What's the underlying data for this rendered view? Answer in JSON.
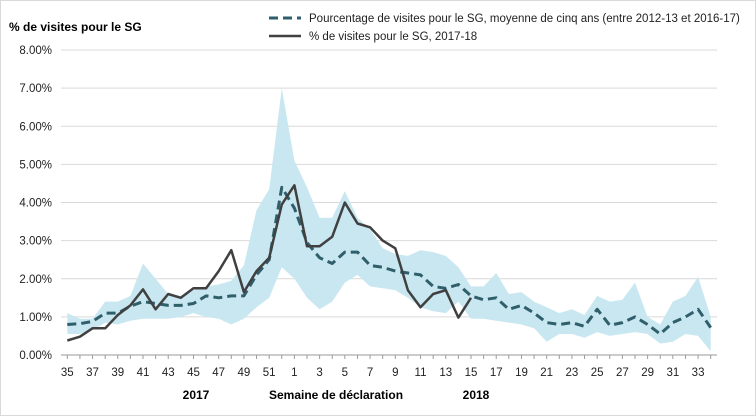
{
  "chart_data": {
    "type": "line",
    "title": "",
    "ylabel": "% de visites pour le SG",
    "xlabel": "Semaine de déclaration",
    "year_labels": [
      "2017",
      "2018"
    ],
    "ylim": [
      0,
      8
    ],
    "y_ticks": [
      "0.00%",
      "1.00%",
      "2.00%",
      "3.00%",
      "4.00%",
      "5.00%",
      "6.00%",
      "7.00%",
      "8.00%"
    ],
    "weeks": [
      35,
      36,
      37,
      38,
      39,
      40,
      41,
      42,
      43,
      44,
      45,
      46,
      47,
      48,
      49,
      50,
      51,
      52,
      1,
      2,
      3,
      4,
      5,
      6,
      7,
      8,
      9,
      10,
      11,
      12,
      13,
      14,
      15,
      16,
      17,
      18,
      19,
      20,
      21,
      22,
      23,
      24,
      25,
      26,
      27,
      28,
      29,
      30,
      31,
      32,
      33,
      34
    ],
    "x_tick_labels": [
      "35",
      "37",
      "39",
      "41",
      "43",
      "45",
      "47",
      "49",
      "51",
      "1",
      "3",
      "5",
      "7",
      "9",
      "11",
      "13",
      "15",
      "17",
      "19",
      "21",
      "23",
      "25",
      "27",
      "29",
      "31",
      "33"
    ],
    "legend_position": "top",
    "grid": "horizontal",
    "series": [
      {
        "name": "Pourcentage de visites pour le SG, moyenne de cinq ans (entre 2012-13 et 2016-17)",
        "style": "dashed",
        "color": "#2e5f6b",
        "values": [
          0.8,
          0.82,
          0.88,
          1.1,
          1.1,
          1.28,
          1.4,
          1.35,
          1.3,
          1.3,
          1.35,
          1.55,
          1.5,
          1.55,
          1.55,
          2.1,
          2.5,
          4.4,
          3.85,
          2.95,
          2.55,
          2.4,
          2.7,
          2.7,
          2.35,
          2.3,
          2.2,
          2.15,
          2.1,
          1.8,
          1.75,
          1.85,
          1.55,
          1.45,
          1.5,
          1.2,
          1.3,
          1.1,
          0.85,
          0.8,
          0.85,
          0.75,
          1.2,
          0.78,
          0.85,
          1.0,
          0.8,
          0.55,
          0.85,
          1.0,
          1.2,
          0.72
        ]
      },
      {
        "name": "% de visites pour le SG, 2017-18",
        "style": "solid",
        "color": "#404040",
        "values": [
          0.38,
          0.48,
          0.7,
          0.7,
          1.05,
          1.3,
          1.72,
          1.2,
          1.6,
          1.5,
          1.75,
          1.75,
          2.2,
          2.75,
          1.65,
          2.2,
          2.55,
          3.95,
          4.45,
          2.85,
          2.85,
          3.1,
          4.0,
          3.45,
          3.35,
          3.0,
          2.8,
          1.7,
          1.25,
          1.6,
          1.7,
          0.98,
          1.5
        ]
      }
    ],
    "range_band": {
      "name": "",
      "color": "#c9e7f1",
      "upper": [
        1.1,
        0.95,
        0.95,
        1.4,
        1.4,
        1.55,
        2.4,
        2.0,
        1.6,
        1.55,
        1.7,
        1.8,
        1.85,
        1.95,
        2.35,
        3.8,
        4.35,
        7.0,
        5.1,
        4.4,
        3.6,
        3.6,
        4.3,
        3.6,
        3.3,
        2.8,
        2.65,
        2.6,
        2.75,
        2.7,
        2.6,
        2.3,
        1.8,
        1.8,
        2.15,
        1.6,
        1.65,
        1.4,
        1.25,
        1.1,
        1.2,
        1.05,
        1.55,
        1.4,
        1.45,
        1.9,
        1.0,
        0.8,
        1.4,
        1.55,
        2.05,
        1.0
      ],
      "lower": [
        0.55,
        0.55,
        0.65,
        0.85,
        0.8,
        0.9,
        0.95,
        0.95,
        0.95,
        1.0,
        1.1,
        1.0,
        0.95,
        0.8,
        0.95,
        1.25,
        1.5,
        2.3,
        2.0,
        1.5,
        1.2,
        1.4,
        1.9,
        2.1,
        1.8,
        1.75,
        1.7,
        1.5,
        1.25,
        1.15,
        1.1,
        1.4,
        0.95,
        0.95,
        0.9,
        0.85,
        0.8,
        0.7,
        0.35,
        0.55,
        0.55,
        0.45,
        0.6,
        0.5,
        0.55,
        0.6,
        0.55,
        0.3,
        0.35,
        0.55,
        0.5,
        0.1
      ]
    }
  }
}
